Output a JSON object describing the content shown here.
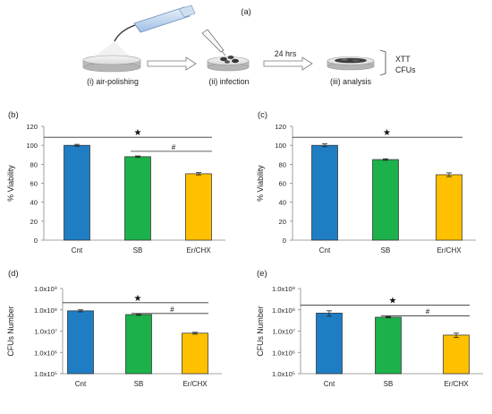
{
  "schematic": {
    "panel_label": "(a)",
    "steps": [
      "(i) air-polishing",
      "(ii) infection",
      "(iii) analysis"
    ],
    "time_label": "24 hrs",
    "outputs": [
      "XTT",
      "CFUs"
    ]
  },
  "colors": {
    "Cnt": "#1f7dc4",
    "SB": "#1db14b",
    "Er/CHX": "#ffc000"
  },
  "chart_data": [
    {
      "panel": "(b)",
      "type": "bar",
      "scale": "linear",
      "ylabel": "% Viability",
      "ylim": [
        0,
        120
      ],
      "yticks": [
        "0",
        "20",
        "40",
        "60",
        "80",
        "100",
        "120"
      ],
      "categories": [
        "Cnt",
        "SB",
        "Er/CHX"
      ],
      "values": [
        100,
        88,
        70
      ],
      "errors": [
        1,
        0.8,
        1.2
      ],
      "significance": [
        {
          "from": 0,
          "to": 2,
          "symbol": "★"
        },
        {
          "from": 1,
          "to": 2,
          "symbol": "#"
        }
      ]
    },
    {
      "panel": "(c)",
      "type": "bar",
      "scale": "linear",
      "ylabel": "% Viability",
      "ylim": [
        0,
        120
      ],
      "yticks": [
        "0",
        "20",
        "40",
        "60",
        "80",
        "100",
        "120"
      ],
      "categories": [
        "Cnt",
        "SB",
        "Er/CHX"
      ],
      "values": [
        100,
        85,
        69
      ],
      "errors": [
        1.5,
        0.8,
        2
      ],
      "significance": [
        {
          "from": 0,
          "to": 2,
          "symbol": "★"
        }
      ]
    },
    {
      "panel": "(d)",
      "type": "bar",
      "scale": "log",
      "ylabel": "CFUs Number",
      "ylim": [
        100000,
        1000000000
      ],
      "yticks": [
        "1.0x10⁵",
        "1.0x10⁶",
        "1.0x10⁷",
        "1.0x10⁸",
        "1.0x10⁹"
      ],
      "categories": [
        "Cnt",
        "SB",
        "Er/CHX"
      ],
      "values": [
        90000000,
        60000000,
        8000000
      ],
      "errors": [
        10000000,
        5000000,
        800000
      ],
      "significance": [
        {
          "from": 0,
          "to": 2,
          "symbol": "★"
        },
        {
          "from": 1,
          "to": 2,
          "symbol": "#"
        }
      ]
    },
    {
      "panel": "(e)",
      "type": "bar",
      "scale": "log",
      "ylabel": "CFUs Number",
      "ylim": [
        100000,
        1000000000
      ],
      "yticks": [
        "1.0x10⁵",
        "1.0x10⁶",
        "1.0x10⁷",
        "1.0x10⁸",
        "1.0x10⁹"
      ],
      "categories": [
        "Cnt",
        "SB",
        "Er/CHX"
      ],
      "values": [
        70000000,
        45000000,
        6500000
      ],
      "errors": [
        20000000,
        3000000,
        1500000
      ],
      "significance": [
        {
          "from": 0,
          "to": 2,
          "symbol": "★"
        },
        {
          "from": 1,
          "to": 2,
          "symbol": "#"
        }
      ]
    }
  ]
}
